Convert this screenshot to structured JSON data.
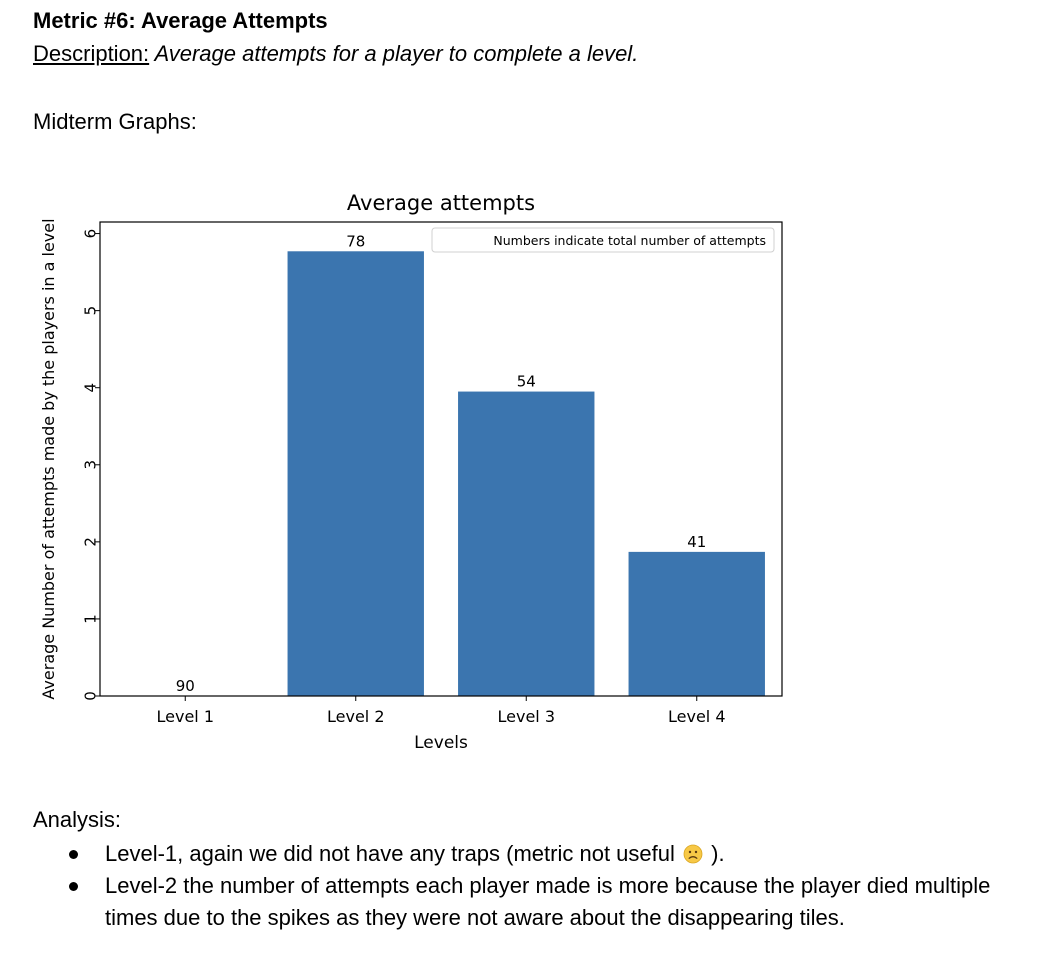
{
  "document": {
    "metric_heading": "Metric #6: Average Attempts",
    "description_label": "Description:",
    "description_text": " Average attempts for a player to complete a level.",
    "graphs_heading": "Midterm Graphs:",
    "analysis_heading": "Analysis:",
    "bullets": [
      {
        "text_before": "Level-1, again we did not have any traps (metric not useful ",
        "emoji": "slightly-frowning-face-icon",
        "text_after": " )."
      },
      {
        "text_before": "Level-2 the number of attempts each player made is more because the player died multiple times due to the spikes as they were not aware about the disappearing tiles.",
        "emoji": "",
        "text_after": ""
      }
    ]
  },
  "chart_data": {
    "type": "bar",
    "title": "Average attempts",
    "xlabel": "Levels",
    "ylabel": "Average Number of attempts made by the players in a level",
    "categories": [
      "Level 1",
      "Level 2",
      "Level 3",
      "Level 4"
    ],
    "values": [
      0,
      5.77,
      3.95,
      1.87
    ],
    "bar_labels": [
      "90",
      "78",
      "54",
      "41"
    ],
    "ylim": [
      0,
      6.15
    ],
    "yticks": [
      0,
      1,
      2,
      3,
      4,
      5,
      6
    ],
    "legend": {
      "text": "Numbers indicate total number of attempts",
      "placement": "upper right"
    },
    "bar_color": "#3b75af",
    "grid": false
  }
}
